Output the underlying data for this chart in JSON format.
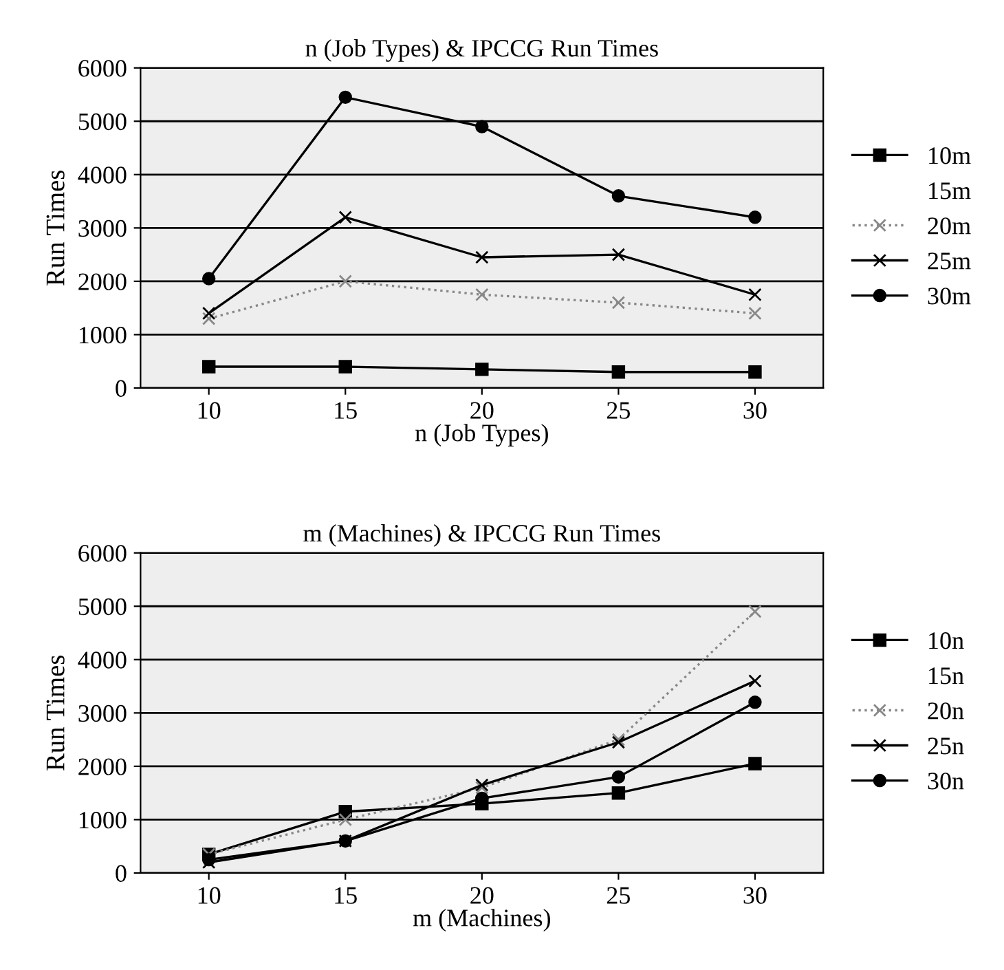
{
  "chart_data": [
    {
      "type": "line",
      "title": "n (Job Types) & IPCCG Run Times",
      "xlabel": "n (Job Types)",
      "ylabel": "Run Times",
      "categories": [
        "10",
        "15",
        "20",
        "25",
        "30"
      ],
      "ylim": [
        0,
        6000
      ],
      "yticks": [
        0,
        1000,
        2000,
        3000,
        4000,
        5000,
        6000
      ],
      "grid": "y",
      "legend": "right",
      "series": [
        {
          "name": "10m",
          "color": "#000000",
          "marker": "square",
          "line_style": "solid",
          "values": [
            400,
            400,
            350,
            300,
            300
          ]
        },
        {
          "name": "15m",
          "marker": "none",
          "values": [
            null,
            null,
            null,
            null,
            null
          ]
        },
        {
          "name": "20m",
          "color": "#888888",
          "marker": "cross",
          "line_style": "dotted",
          "values": [
            1300,
            2000,
            1750,
            1600,
            1400
          ]
        },
        {
          "name": "25m",
          "color": "#000000",
          "marker": "cross",
          "line_style": "solid",
          "values": [
            1400,
            3200,
            2450,
            2500,
            1750
          ]
        },
        {
          "name": "30m",
          "color": "#000000",
          "marker": "circle",
          "line_style": "solid",
          "values": [
            2050,
            5450,
            4900,
            3600,
            3200
          ]
        }
      ]
    },
    {
      "type": "line",
      "title": "m (Machines) & IPCCG Run Times",
      "xlabel": "m (Machines)",
      "ylabel": "Run Times",
      "categories": [
        "10",
        "15",
        "20",
        "25",
        "30"
      ],
      "ylim": [
        0,
        6000
      ],
      "yticks": [
        0,
        1000,
        2000,
        3000,
        4000,
        5000,
        6000
      ],
      "grid": "y",
      "legend": "right",
      "series": [
        {
          "name": "10n",
          "color": "#000000",
          "marker": "square",
          "line_style": "solid",
          "values": [
            350,
            1150,
            1300,
            1500,
            2050
          ]
        },
        {
          "name": "15n",
          "marker": "none",
          "values": [
            null,
            null,
            null,
            null,
            null
          ]
        },
        {
          "name": "20n",
          "color": "#888888",
          "marker": "cross",
          "line_style": "dotted",
          "values": [
            350,
            1000,
            1600,
            2500,
            4900
          ]
        },
        {
          "name": "25n",
          "color": "#000000",
          "marker": "cross",
          "line_style": "solid",
          "values": [
            200,
            600,
            1650,
            2450,
            3600
          ]
        },
        {
          "name": "30n",
          "color": "#000000",
          "marker": "circle",
          "line_style": "solid",
          "values": [
            250,
            600,
            1400,
            1800,
            3200
          ]
        }
      ]
    }
  ]
}
